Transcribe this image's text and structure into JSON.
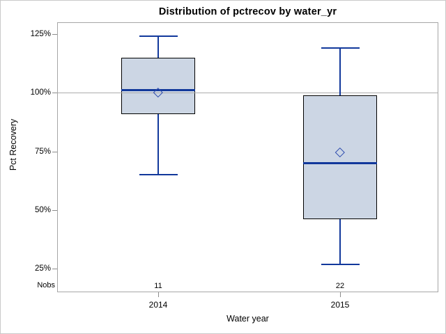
{
  "title": "Distribution of pctrecov by water_yr",
  "y_axis": {
    "label": "Pct Recovery",
    "tick_labels": [
      "125%",
      "100%",
      "75%",
      "50%",
      "25%"
    ],
    "tick_values": [
      125,
      100,
      75,
      50,
      25
    ]
  },
  "x_axis": {
    "label": "Water year",
    "categories": [
      "2014",
      "2015"
    ]
  },
  "nobs": {
    "label": "Nobs",
    "values": [
      "11",
      "22"
    ]
  },
  "colors": {
    "box_fill": "#ccd6e4",
    "box_border": "#000000",
    "line_blue": "#11389b",
    "mean_marker_blue": "#2d4cae",
    "frame_gray": "#a6a6a6",
    "reference_line_gray": "#ababab",
    "tick_gray": "#8c8c8c",
    "text_black": "#000000"
  },
  "chart_data": {
    "type": "boxplot",
    "title": "Distribution of pctrecov by water_yr",
    "xlabel": "Water year",
    "ylabel": "Pct Recovery",
    "ylim": [
      15,
      130
    ],
    "y_ticks_percent": [
      25,
      50,
      75,
      100,
      125
    ],
    "grid": "reference line at 100% only",
    "categories": [
      "2014",
      "2015"
    ],
    "series": [
      {
        "category": "2014",
        "n_obs": 11,
        "whisker_low": 65,
        "q1": 91,
        "median": 101,
        "mean": 100,
        "q3": 115,
        "whisker_high": 124
      },
      {
        "category": "2015",
        "n_obs": 22,
        "whisker_low": 27,
        "q1": 46,
        "median": 70,
        "mean": 74.5,
        "q3": 99,
        "whisker_high": 119
      }
    ],
    "reference_line_value": 100
  }
}
